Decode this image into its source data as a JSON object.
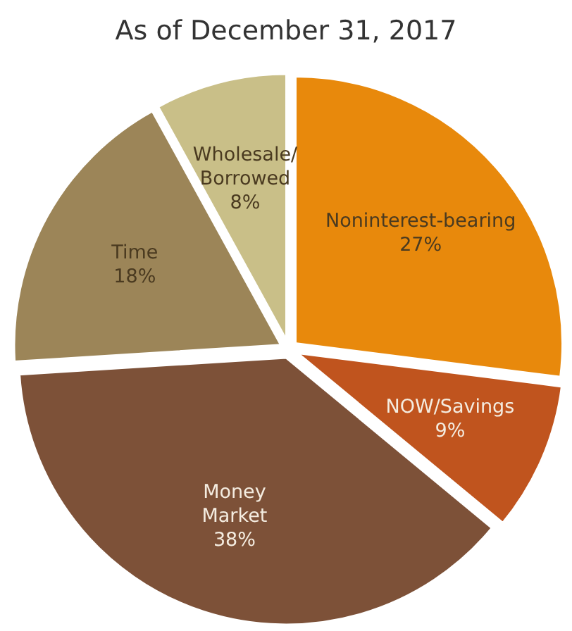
{
  "chart_data": {
    "type": "pie",
    "title": "As of December 31, 2017",
    "categories": [
      "Noninterest-bearing",
      "NOW/Savings",
      "Money Market",
      "Time",
      "Wholesale/ Borrowed"
    ],
    "values": [
      27,
      9,
      38,
      18,
      8
    ],
    "colors": [
      "#e8890c",
      "#c0541e",
      "#7d5138",
      "#9c8558",
      "#c9bf88"
    ],
    "value_labels": [
      "27%",
      "9%",
      "38%",
      "18%",
      "8%"
    ]
  }
}
